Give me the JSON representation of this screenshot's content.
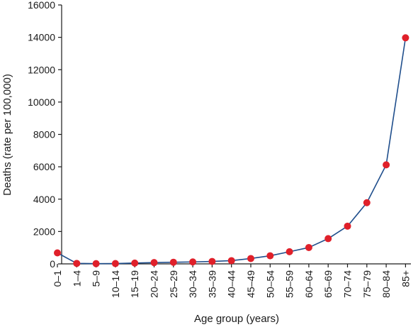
{
  "chart_data": {
    "type": "line",
    "title": "",
    "xlabel": "Age group (years)",
    "ylabel": "Deaths (rate per 100,000)",
    "categories": [
      "0–1",
      "1–4",
      "5–9",
      "10–14",
      "15–19",
      "20–24",
      "25–29",
      "30–34",
      "35–39",
      "40–44",
      "45–49",
      "50–54",
      "55–59",
      "60–64",
      "65–69",
      "70–74",
      "75–79",
      "80–84",
      "85+"
    ],
    "series": [
      {
        "values": [
          680,
          30,
          15,
          20,
          50,
          80,
          100,
          120,
          150,
          200,
          330,
          500,
          750,
          1010,
          1560,
          2330,
          3780,
          6120,
          13970
        ]
      }
    ],
    "ylim": [
      0,
      16000
    ],
    "yticks": [
      0,
      2000,
      4000,
      6000,
      8000,
      10000,
      12000,
      14000,
      16000
    ],
    "grid": false,
    "line_color": "#1f4e8c",
    "marker_color": "#e0202a"
  }
}
